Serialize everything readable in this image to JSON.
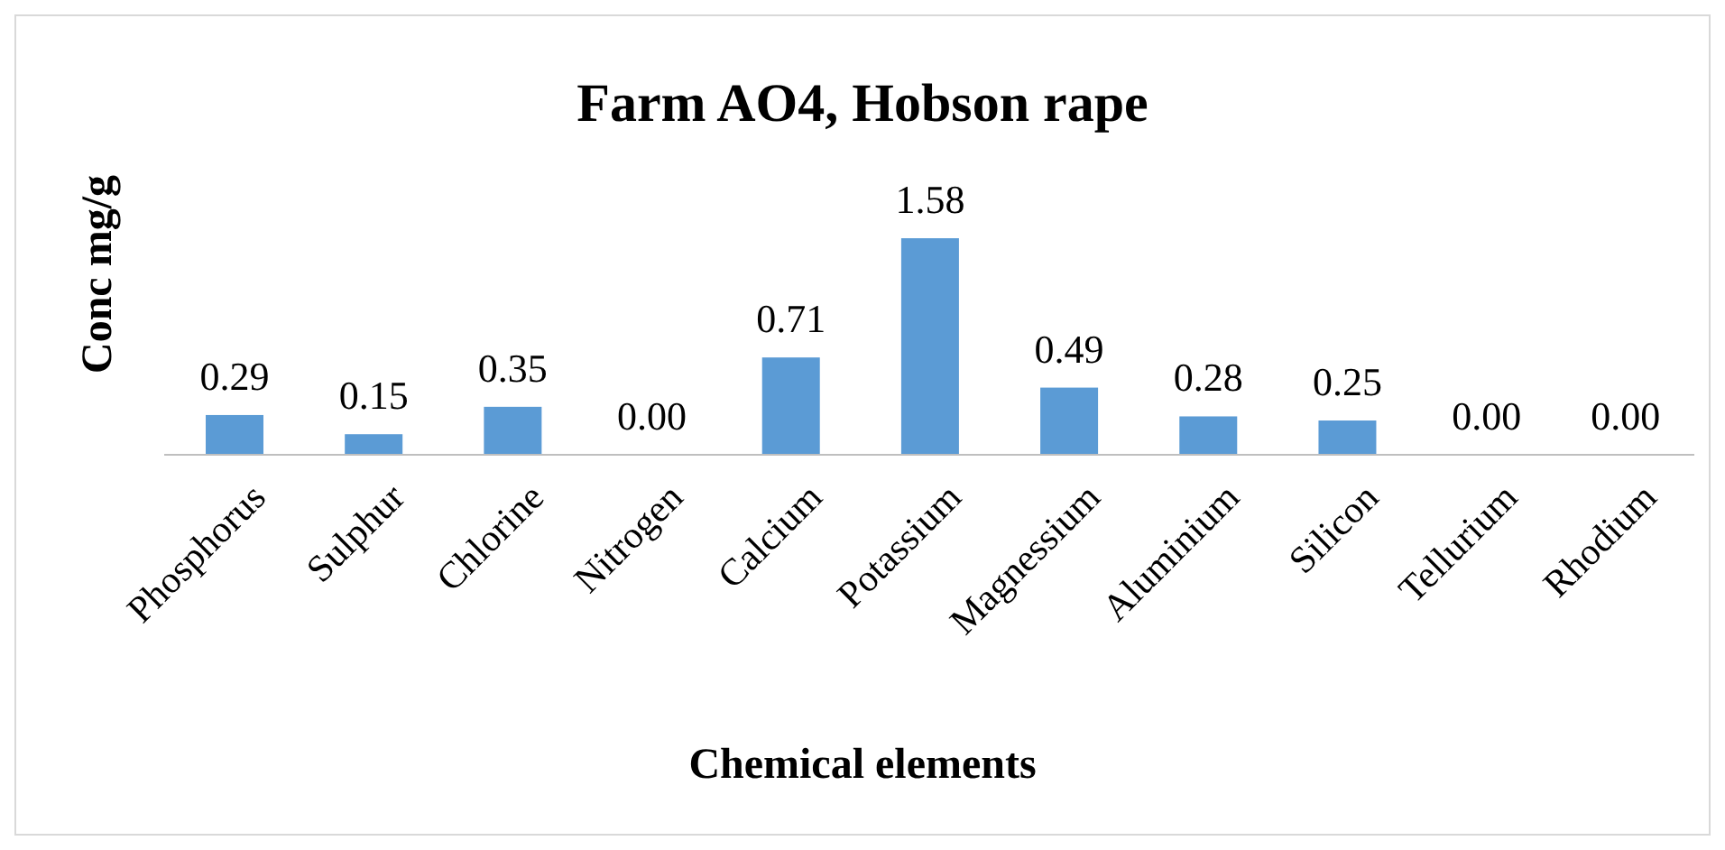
{
  "chart_data": {
    "type": "bar",
    "title": "Farm AO4, Hobson rape",
    "xlabel": "Chemical elements",
    "ylabel": "Conc mg/g",
    "categories": [
      "Phosphorus",
      "Sulphur",
      "Chlorine",
      "Nitrogen",
      "Calcium",
      "Potassium",
      "Magnessium",
      "Aluminium",
      "Silicon",
      "Tellurium",
      "Rhodium"
    ],
    "values": [
      0.29,
      0.15,
      0.35,
      0,
      0.71,
      1.58,
      0.49,
      0.28,
      0.25,
      0,
      0
    ],
    "value_labels": [
      "0.29",
      "0.15",
      "0.35",
      "0.00",
      "0.71",
      "1.58",
      "0.49",
      "0.28",
      "0.25",
      "0.00",
      "0.00"
    ],
    "color": "#5b9bd5",
    "grid": false,
    "legend": false
  }
}
